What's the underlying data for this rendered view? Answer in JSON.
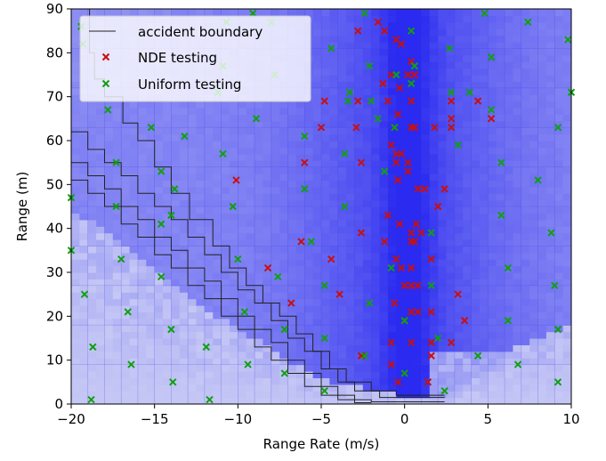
{
  "chart_data": {
    "type": "scatter",
    "xlabel": "Range Rate (m/s)",
    "ylabel": "Range (m)",
    "xlim": [
      -20,
      10
    ],
    "ylim": [
      0,
      90
    ],
    "xticks": [
      -20,
      -15,
      -10,
      -5,
      0,
      5,
      10
    ],
    "yticks": [
      0,
      10,
      20,
      30,
      40,
      50,
      60,
      70,
      80,
      90
    ],
    "xtick_labels": [
      "−20",
      "−15",
      "−10",
      "−5",
      "0",
      "5",
      "10"
    ],
    "ytick_labels": [
      "0",
      "10",
      "20",
      "30",
      "40",
      "50",
      "60",
      "70",
      "80",
      "90"
    ],
    "grid": false,
    "legend_position": "top-left",
    "legend": [
      {
        "label": "accident boundary",
        "marker": "line",
        "color": "#222222"
      },
      {
        "label": "NDE testing",
        "marker": "x",
        "color": "#c81010"
      },
      {
        "label": "Uniform testing",
        "marker": "x",
        "color": "#10a010"
      }
    ],
    "colors": {
      "background_low": "#cdcff5",
      "background_high": "#2a2af0",
      "boundary": "#222222",
      "nde": "#c81010",
      "uniform": "#10a010"
    },
    "accident_boundary": [
      {
        "name": "accident boundary",
        "points": [
          [
            -18.9,
            90
          ],
          [
            -18.6,
            80
          ],
          [
            -18.0,
            74
          ],
          [
            -16.9,
            70
          ],
          [
            -16.0,
            64
          ],
          [
            -15.0,
            60
          ],
          [
            -14.0,
            54
          ],
          [
            -12.9,
            48
          ],
          [
            -11.5,
            42
          ],
          [
            -10.5,
            36
          ],
          [
            -9.5,
            31
          ],
          [
            -8.5,
            27
          ],
          [
            -7.5,
            23
          ],
          [
            -6.5,
            20
          ],
          [
            -5.5,
            16
          ],
          [
            -4.5,
            12
          ],
          [
            -3.5,
            8
          ],
          [
            -2.0,
            5
          ],
          [
            -0.5,
            3
          ],
          [
            2.4,
            2
          ]
        ]
      },
      {
        "name": "accident boundary",
        "points": [
          [
            -20.0,
            66
          ],
          [
            -19.0,
            62
          ],
          [
            -18.0,
            58
          ],
          [
            -17.0,
            55
          ],
          [
            -16.0,
            52
          ],
          [
            -15.0,
            48
          ],
          [
            -14.0,
            45
          ],
          [
            -13.0,
            42
          ],
          [
            -12.0,
            38
          ],
          [
            -11.0,
            34
          ],
          [
            -10.0,
            30
          ],
          [
            -9.0,
            26
          ],
          [
            -8.0,
            23
          ],
          [
            -7.0,
            19
          ],
          [
            -6.0,
            15
          ],
          [
            -5.0,
            12
          ],
          [
            -4.0,
            8
          ],
          [
            -3.0,
            5
          ],
          [
            -1.5,
            3
          ],
          [
            2.4,
            1.5
          ]
        ]
      },
      {
        "name": "accident boundary",
        "points": [
          [
            -20.0,
            59
          ],
          [
            -19.0,
            55
          ],
          [
            -18.0,
            52
          ],
          [
            -17.0,
            49
          ],
          [
            -16.0,
            45
          ],
          [
            -15.0,
            42
          ],
          [
            -14.0,
            38
          ],
          [
            -13.0,
            35
          ],
          [
            -12.0,
            31
          ],
          [
            -11.0,
            28
          ],
          [
            -10.0,
            24
          ],
          [
            -9.0,
            20
          ],
          [
            -8.0,
            17
          ],
          [
            -7.0,
            14
          ],
          [
            -6.0,
            10
          ],
          [
            -5.0,
            7
          ],
          [
            -4.0,
            4
          ],
          [
            -3.0,
            2
          ],
          [
            -2.0,
            1
          ],
          [
            2.4,
            0.5
          ]
        ]
      },
      {
        "name": "accident boundary",
        "points": [
          [
            -20.0,
            55
          ],
          [
            -19.0,
            51
          ],
          [
            -18.0,
            48
          ],
          [
            -17.0,
            45
          ],
          [
            -16.0,
            41
          ],
          [
            -15.0,
            38
          ],
          [
            -14.0,
            34
          ],
          [
            -13.0,
            31
          ],
          [
            -12.0,
            27
          ],
          [
            -11.0,
            24
          ],
          [
            -10.0,
            20
          ],
          [
            -9.0,
            17
          ],
          [
            -8.0,
            13
          ],
          [
            -7.0,
            10
          ],
          [
            -6.0,
            7
          ],
          [
            -5.0,
            4
          ],
          [
            -4.0,
            2
          ],
          [
            -3.0,
            1
          ],
          [
            -2.0,
            0.3
          ]
        ]
      }
    ],
    "series": [
      {
        "name": "NDE testing",
        "color": "#c81010",
        "points": [
          [
            -2.8,
            85
          ],
          [
            -1.6,
            87
          ],
          [
            -1.2,
            85
          ],
          [
            -0.5,
            83
          ],
          [
            -0.2,
            82
          ],
          [
            0.4,
            78
          ],
          [
            -0.8,
            75
          ],
          [
            0.2,
            75
          ],
          [
            0.6,
            75
          ],
          [
            -1.3,
            73
          ],
          [
            -0.3,
            72
          ],
          [
            -4.8,
            69
          ],
          [
            -2.8,
            69
          ],
          [
            -1.0,
            69
          ],
          [
            0.4,
            69
          ],
          [
            2.8,
            69
          ],
          [
            4.4,
            69
          ],
          [
            -0.4,
            66
          ],
          [
            5.2,
            65
          ],
          [
            -5.0,
            63
          ],
          [
            -2.9,
            63
          ],
          [
            -0.6,
            63
          ],
          [
            0.6,
            63
          ],
          [
            1.8,
            63
          ],
          [
            2.8,
            65
          ],
          [
            2.8,
            63
          ],
          [
            0.4,
            63
          ],
          [
            -0.8,
            59
          ],
          [
            -0.5,
            57
          ],
          [
            -0.2,
            57
          ],
          [
            -0.5,
            55
          ],
          [
            0.2,
            55
          ],
          [
            -6.0,
            55
          ],
          [
            -2.6,
            55
          ],
          [
            -0.4,
            51
          ],
          [
            0.2,
            53
          ],
          [
            -10.1,
            51
          ],
          [
            0.8,
            49
          ],
          [
            1.2,
            49
          ],
          [
            2.4,
            49
          ],
          [
            2.0,
            45
          ],
          [
            -1.0,
            43
          ],
          [
            -0.3,
            41
          ],
          [
            0.7,
            41
          ],
          [
            1.0,
            39
          ],
          [
            0.4,
            39
          ],
          [
            -2.6,
            39
          ],
          [
            -6.2,
            37
          ],
          [
            -1.2,
            37
          ],
          [
            0.4,
            37
          ],
          [
            0.6,
            37
          ],
          [
            1.6,
            33
          ],
          [
            -0.5,
            33
          ],
          [
            -0.2,
            31
          ],
          [
            0.4,
            31
          ],
          [
            -4.4,
            33
          ],
          [
            -8.2,
            31
          ],
          [
            0.0,
            27
          ],
          [
            0.4,
            27
          ],
          [
            0.8,
            27
          ],
          [
            3.2,
            25
          ],
          [
            -3.9,
            25
          ],
          [
            -0.6,
            23
          ],
          [
            0.4,
            21
          ],
          [
            0.8,
            21
          ],
          [
            1.6,
            21
          ],
          [
            0.0,
            19
          ],
          [
            -6.8,
            23
          ],
          [
            3.6,
            19
          ],
          [
            -0.8,
            14
          ],
          [
            0.4,
            14
          ],
          [
            1.6,
            14
          ],
          [
            2.8,
            14
          ],
          [
            -2.6,
            11
          ],
          [
            -0.8,
            9
          ],
          [
            1.6,
            11
          ],
          [
            -0.4,
            5
          ],
          [
            1.4,
            5
          ]
        ]
      },
      {
        "name": "Uniform testing",
        "color": "#10a010",
        "points": [
          [
            -9.1,
            89
          ],
          [
            -2.4,
            89
          ],
          [
            -8.0,
            87
          ],
          [
            4.8,
            89
          ],
          [
            7.4,
            87
          ],
          [
            -10.7,
            87
          ],
          [
            -19.4,
            86
          ],
          [
            0.4,
            85
          ],
          [
            -4.4,
            81
          ],
          [
            2.7,
            81
          ],
          [
            9.8,
            83
          ],
          [
            -19.3,
            82
          ],
          [
            -2.1,
            77
          ],
          [
            5.2,
            79
          ],
          [
            0.6,
            77
          ],
          [
            -10.9,
            77
          ],
          [
            -7.8,
            75
          ],
          [
            -0.5,
            75
          ],
          [
            -3.3,
            71
          ],
          [
            0.4,
            73
          ],
          [
            2.8,
            71
          ],
          [
            3.9,
            71
          ],
          [
            10.0,
            71
          ],
          [
            -11.2,
            71
          ],
          [
            -2.0,
            69
          ],
          [
            -3.4,
            69
          ],
          [
            5.2,
            67
          ],
          [
            -1.6,
            65
          ],
          [
            -8.9,
            65
          ],
          [
            -17.8,
            67
          ],
          [
            -15.2,
            63
          ],
          [
            -13.2,
            61
          ],
          [
            -6.0,
            61
          ],
          [
            9.2,
            63
          ],
          [
            -0.6,
            63
          ],
          [
            3.2,
            59
          ],
          [
            -3.6,
            57
          ],
          [
            -10.9,
            57
          ],
          [
            5.8,
            55
          ],
          [
            -17.3,
            55
          ],
          [
            -1.2,
            53
          ],
          [
            -14.6,
            53
          ],
          [
            8.0,
            51
          ],
          [
            -13.8,
            49
          ],
          [
            -6.0,
            49
          ],
          [
            5.8,
            43
          ],
          [
            -17.3,
            45
          ],
          [
            -3.6,
            45
          ],
          [
            -10.3,
            45
          ],
          [
            -20.0,
            47
          ],
          [
            -14.0,
            43
          ],
          [
            -14.6,
            41
          ],
          [
            1.6,
            39
          ],
          [
            -20.0,
            35
          ],
          [
            8.8,
            39
          ],
          [
            -10.0,
            33
          ],
          [
            -17.0,
            33
          ],
          [
            -5.6,
            37
          ],
          [
            6.2,
            31
          ],
          [
            -7.6,
            29
          ],
          [
            -14.6,
            29
          ],
          [
            -0.8,
            31
          ],
          [
            -4.8,
            27
          ],
          [
            9.0,
            27
          ],
          [
            -19.2,
            25
          ],
          [
            1.6,
            27
          ],
          [
            -2.1,
            23
          ],
          [
            -16.6,
            21
          ],
          [
            -9.6,
            21
          ],
          [
            6.2,
            19
          ],
          [
            0.0,
            19
          ],
          [
            -14.0,
            17
          ],
          [
            -7.2,
            17
          ],
          [
            -4.8,
            15
          ],
          [
            2.0,
            15
          ],
          [
            9.2,
            17
          ],
          [
            -18.7,
            13
          ],
          [
            -11.9,
            13
          ],
          [
            -2.4,
            11
          ],
          [
            4.4,
            11
          ],
          [
            -9.4,
            9
          ],
          [
            -16.4,
            9
          ],
          [
            6.8,
            9
          ],
          [
            -7.2,
            7
          ],
          [
            0.0,
            7
          ],
          [
            -13.9,
            5
          ],
          [
            -4.8,
            3
          ],
          [
            2.4,
            3
          ],
          [
            9.2,
            5
          ],
          [
            -18.8,
            1
          ],
          [
            -11.7,
            1
          ]
        ]
      }
    ]
  }
}
